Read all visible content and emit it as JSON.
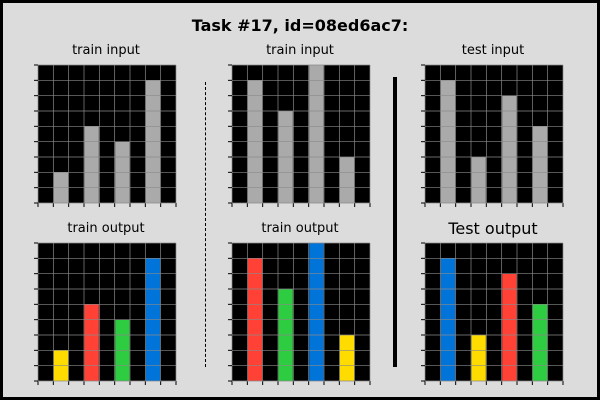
{
  "title": "Task #17, id=08ed6ac7:",
  "colors": {
    "background": "#000000",
    "grid_line": "#8a8a8a",
    "gray": "#aaaaaa",
    "blue": "#0074d9",
    "red": "#ff4136",
    "green": "#2ecc40",
    "yellow": "#ffdc00"
  },
  "grid": {
    "rows": 9,
    "cols": 9
  },
  "panels": [
    {
      "label": "train input",
      "bars": [
        {
          "col": 1,
          "height": 2,
          "color": "gray"
        },
        {
          "col": 3,
          "height": 5,
          "color": "gray"
        },
        {
          "col": 5,
          "height": 4,
          "color": "gray"
        },
        {
          "col": 7,
          "height": 8,
          "color": "gray"
        }
      ]
    },
    {
      "label": "train input",
      "bars": [
        {
          "col": 1,
          "height": 8,
          "color": "gray"
        },
        {
          "col": 3,
          "height": 6,
          "color": "gray"
        },
        {
          "col": 5,
          "height": 9,
          "color": "gray"
        },
        {
          "col": 7,
          "height": 3,
          "color": "gray"
        }
      ]
    },
    {
      "label": "test input",
      "bars": [
        {
          "col": 1,
          "height": 8,
          "color": "gray"
        },
        {
          "col": 3,
          "height": 3,
          "color": "gray"
        },
        {
          "col": 5,
          "height": 7,
          "color": "gray"
        },
        {
          "col": 7,
          "height": 5,
          "color": "gray"
        }
      ]
    },
    {
      "label": "train output",
      "bars": [
        {
          "col": 1,
          "height": 2,
          "color": "yellow"
        },
        {
          "col": 3,
          "height": 5,
          "color": "red"
        },
        {
          "col": 5,
          "height": 4,
          "color": "green"
        },
        {
          "col": 7,
          "height": 8,
          "color": "blue"
        }
      ]
    },
    {
      "label": "train output",
      "bars": [
        {
          "col": 1,
          "height": 8,
          "color": "red"
        },
        {
          "col": 3,
          "height": 6,
          "color": "green"
        },
        {
          "col": 5,
          "height": 9,
          "color": "blue"
        },
        {
          "col": 7,
          "height": 3,
          "color": "yellow"
        }
      ]
    },
    {
      "label": "Test output",
      "bars": [
        {
          "col": 1,
          "height": 8,
          "color": "blue"
        },
        {
          "col": 3,
          "height": 3,
          "color": "yellow"
        },
        {
          "col": 5,
          "height": 7,
          "color": "red"
        },
        {
          "col": 7,
          "height": 5,
          "color": "green"
        }
      ]
    }
  ]
}
